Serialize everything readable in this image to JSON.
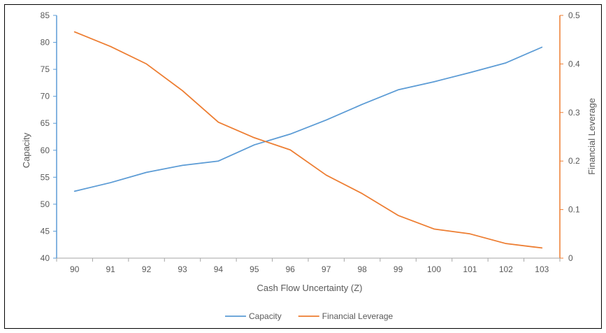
{
  "chart_data": {
    "type": "line",
    "xlabel": "Cash Flow Uncertainty (Z)",
    "ylabel": "Capacity",
    "y2label": "Financial Leverage",
    "categories": [
      "90",
      "91",
      "92",
      "93",
      "94",
      "95",
      "96",
      "97",
      "98",
      "99",
      "100",
      "101",
      "102",
      "103"
    ],
    "ylim": [
      40,
      85
    ],
    "yticks": [
      "40",
      "45",
      "50",
      "55",
      "60",
      "65",
      "70",
      "75",
      "80",
      "85"
    ],
    "y2lim": [
      0,
      0.5
    ],
    "y2ticks": [
      "0",
      "0.1",
      "0.2",
      "0.3",
      "0.4",
      "0.5"
    ],
    "grid": false,
    "legend_position": "bottom",
    "series": [
      {
        "name": "Capacity",
        "axis": "left",
        "color": "#5B9BD5",
        "values": [
          52.4,
          54.0,
          55.9,
          57.2,
          58.0,
          61.0,
          63.0,
          65.6,
          68.5,
          71.2,
          72.7,
          74.4,
          76.2,
          79.1
        ]
      },
      {
        "name": "Financial Leverage",
        "axis": "right",
        "color": "#ED7D31",
        "values": [
          0.466,
          0.436,
          0.4,
          0.345,
          0.28,
          0.248,
          0.223,
          0.171,
          0.133,
          0.088,
          0.06,
          0.05,
          0.03,
          0.021
        ]
      }
    ]
  },
  "colors": {
    "left_axis": "#5B9BD5",
    "right_axis": "#ED7D31",
    "bottom_axis": "#A6A6A6",
    "text": "#595959",
    "frame": "#000000"
  }
}
